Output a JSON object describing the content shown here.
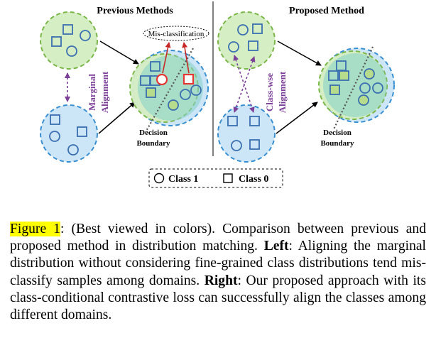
{
  "figure": {
    "left_title": "Previous Methods",
    "right_title": "Proposed Method",
    "misclassification_label": "Mis-classification",
    "marginal_label_line1": "Marginal",
    "marginal_label_line2": "Alignment",
    "classwise_label_line1": "Class-wse",
    "classwise_label_line2": "Alignment",
    "decision_label_line1": "Decision",
    "decision_label_line2": "Boundary",
    "legend_class1": "Class 1",
    "legend_class0": "Class 0",
    "colors": {
      "green_domain": "#d6eec4",
      "blue_domain": "#cde6f7",
      "mixed_domain": "#84cfc9",
      "green_border": "#7ab648",
      "blue_border": "#3a8fd0",
      "purple_arrow": "#7b3f98",
      "red_arrow": "#c62828",
      "error_red": "#e53935"
    }
  },
  "caption": {
    "figure_ref": "Figure 1",
    "intro": ": (Best viewed in colors). Comparison between previous and proposed method in distribution matching. ",
    "left_label": "Left",
    "left_text": ": Aligning the marginal distribution without considering fine-grained class distributions tend mis-classify samples among domains. ",
    "right_label": "Right",
    "right_text": ": Our proposed approach with its class-conditional contrastive loss can successfully align the classes among different domains."
  }
}
